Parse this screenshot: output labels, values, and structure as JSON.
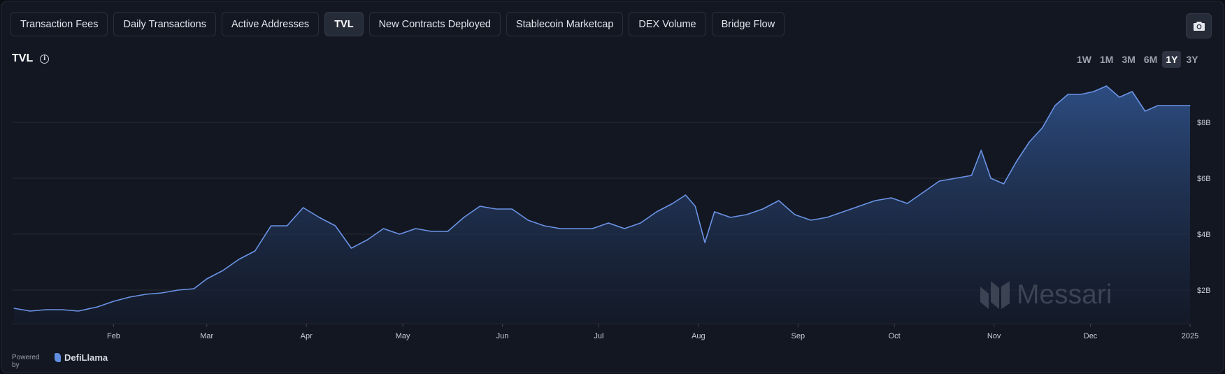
{
  "tabs": [
    {
      "label": "Transaction Fees",
      "active": false
    },
    {
      "label": "Daily Transactions",
      "active": false
    },
    {
      "label": "Active Addresses",
      "active": false
    },
    {
      "label": "TVL",
      "active": true
    },
    {
      "label": "New Contracts Deployed",
      "active": false
    },
    {
      "label": "Stablecoin Marketcap",
      "active": false
    },
    {
      "label": "DEX Volume",
      "active": false
    },
    {
      "label": "Bridge Flow",
      "active": false
    }
  ],
  "title": "TVL",
  "info_icon": "info-icon",
  "camera_icon": "camera-icon",
  "ranges": [
    {
      "label": "1W",
      "active": false
    },
    {
      "label": "1M",
      "active": false
    },
    {
      "label": "3M",
      "active": false
    },
    {
      "label": "6M",
      "active": false
    },
    {
      "label": "1Y",
      "active": true
    },
    {
      "label": "3Y",
      "active": false
    }
  ],
  "powered_by": "Powered by",
  "source": "DefiLlama",
  "watermark": "Messari",
  "colors": {
    "line": "#6b94e6",
    "area_top": "#2e4f86",
    "area_bottom": "#141b2b",
    "grid": "#262b36"
  },
  "chart_data": {
    "type": "area",
    "title": "TVL",
    "xlabel": "",
    "ylabel": "",
    "grid": true,
    "legend": "none",
    "x_tick_labels": [
      "Feb",
      "Mar",
      "Apr",
      "May",
      "Jun",
      "Jul",
      "Aug",
      "Sep",
      "Oct",
      "Nov",
      "Dec",
      "2025"
    ],
    "y_tick_labels": [
      "$2B",
      "$4B",
      "$6B",
      "$8B"
    ],
    "y_tick_values": [
      2,
      4,
      6,
      8
    ],
    "ylim": [
      0.8,
      9.5
    ],
    "x_domain": [
      "2024-01-01",
      "2025-01-01"
    ],
    "series": [
      {
        "unit": "USD billions",
        "x": [
          "2024-01-01",
          "2024-01-06",
          "2024-01-11",
          "2024-01-16",
          "2024-01-21",
          "2024-01-27",
          "2024-02-01",
          "2024-02-06",
          "2024-02-11",
          "2024-02-16",
          "2024-02-21",
          "2024-02-26",
          "2024-03-01",
          "2024-03-06",
          "2024-03-11",
          "2024-03-16",
          "2024-03-21",
          "2024-03-26",
          "2024-03-31",
          "2024-04-05",
          "2024-04-10",
          "2024-04-15",
          "2024-04-20",
          "2024-04-25",
          "2024-04-30",
          "2024-05-05",
          "2024-05-10",
          "2024-05-15",
          "2024-05-20",
          "2024-05-25",
          "2024-05-30",
          "2024-06-04",
          "2024-06-09",
          "2024-06-14",
          "2024-06-19",
          "2024-06-24",
          "2024-06-29",
          "2024-07-04",
          "2024-07-09",
          "2024-07-14",
          "2024-07-19",
          "2024-07-24",
          "2024-07-28",
          "2024-07-31",
          "2024-08-03",
          "2024-08-06",
          "2024-08-11",
          "2024-08-16",
          "2024-08-21",
          "2024-08-26",
          "2024-08-31",
          "2024-09-05",
          "2024-09-10",
          "2024-09-15",
          "2024-09-20",
          "2024-09-25",
          "2024-09-30",
          "2024-10-05",
          "2024-10-10",
          "2024-10-15",
          "2024-10-20",
          "2024-10-25",
          "2024-10-28",
          "2024-10-31",
          "2024-11-04",
          "2024-11-08",
          "2024-11-12",
          "2024-11-16",
          "2024-11-20",
          "2024-11-24",
          "2024-11-28",
          "2024-12-02",
          "2024-12-06",
          "2024-12-10",
          "2024-12-14",
          "2024-12-18",
          "2024-12-22",
          "2024-12-27",
          "2025-01-01"
        ],
        "y": [
          1.35,
          1.25,
          1.3,
          1.3,
          1.25,
          1.4,
          1.6,
          1.75,
          1.85,
          1.9,
          2.0,
          2.05,
          2.4,
          2.7,
          3.1,
          3.4,
          4.3,
          4.3,
          4.95,
          4.6,
          4.3,
          3.5,
          3.8,
          4.2,
          4.0,
          4.2,
          4.1,
          4.1,
          4.6,
          5.0,
          4.9,
          4.9,
          4.5,
          4.3,
          4.2,
          4.2,
          4.2,
          4.4,
          4.2,
          4.4,
          4.8,
          5.1,
          5.4,
          5.0,
          3.7,
          4.8,
          4.6,
          4.7,
          4.9,
          5.2,
          4.7,
          4.5,
          4.6,
          4.8,
          5.0,
          5.2,
          5.3,
          5.1,
          5.5,
          5.9,
          6.0,
          6.1,
          7.0,
          6.0,
          5.8,
          6.6,
          7.3,
          7.8,
          8.6,
          9.0,
          9.0,
          9.1,
          9.3,
          8.9,
          9.1,
          8.4,
          8.6,
          8.6,
          8.6
        ]
      }
    ]
  }
}
